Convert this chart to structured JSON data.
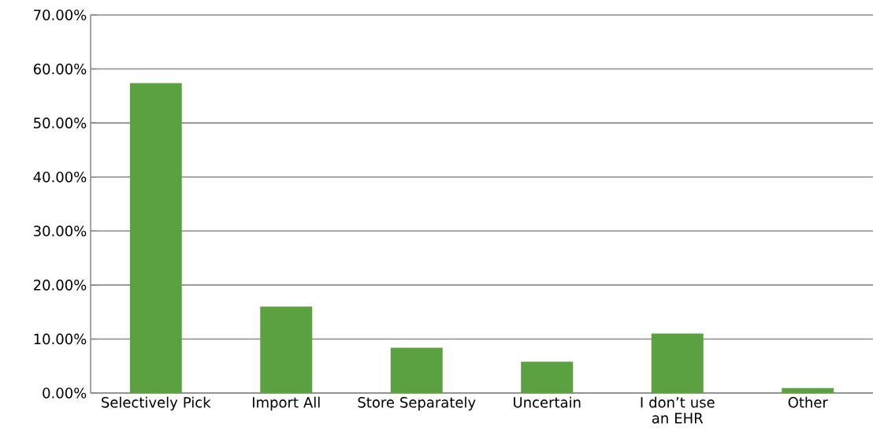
{
  "chart_data": {
    "type": "bar",
    "categories": [
      "Selectively Pick",
      "Import All",
      "Store Separately",
      "Uncertain",
      "I don’t use an EHR",
      "Other"
    ],
    "values": [
      57.4,
      16.0,
      8.4,
      5.8,
      11.0,
      0.9
    ],
    "color": "#5ca141",
    "ylim": [
      0,
      70
    ],
    "yticks": [
      {
        "value": 0,
        "label": "0.00%"
      },
      {
        "value": 10,
        "label": "10.00%"
      },
      {
        "value": 20,
        "label": "20.00%"
      },
      {
        "value": 30,
        "label": "30.00%"
      },
      {
        "value": 40,
        "label": "40.00%"
      },
      {
        "value": 50,
        "label": "50.00%"
      },
      {
        "value": 60,
        "label": "60.00%"
      },
      {
        "value": 70,
        "label": "70.00%"
      }
    ],
    "grid": "y"
  }
}
